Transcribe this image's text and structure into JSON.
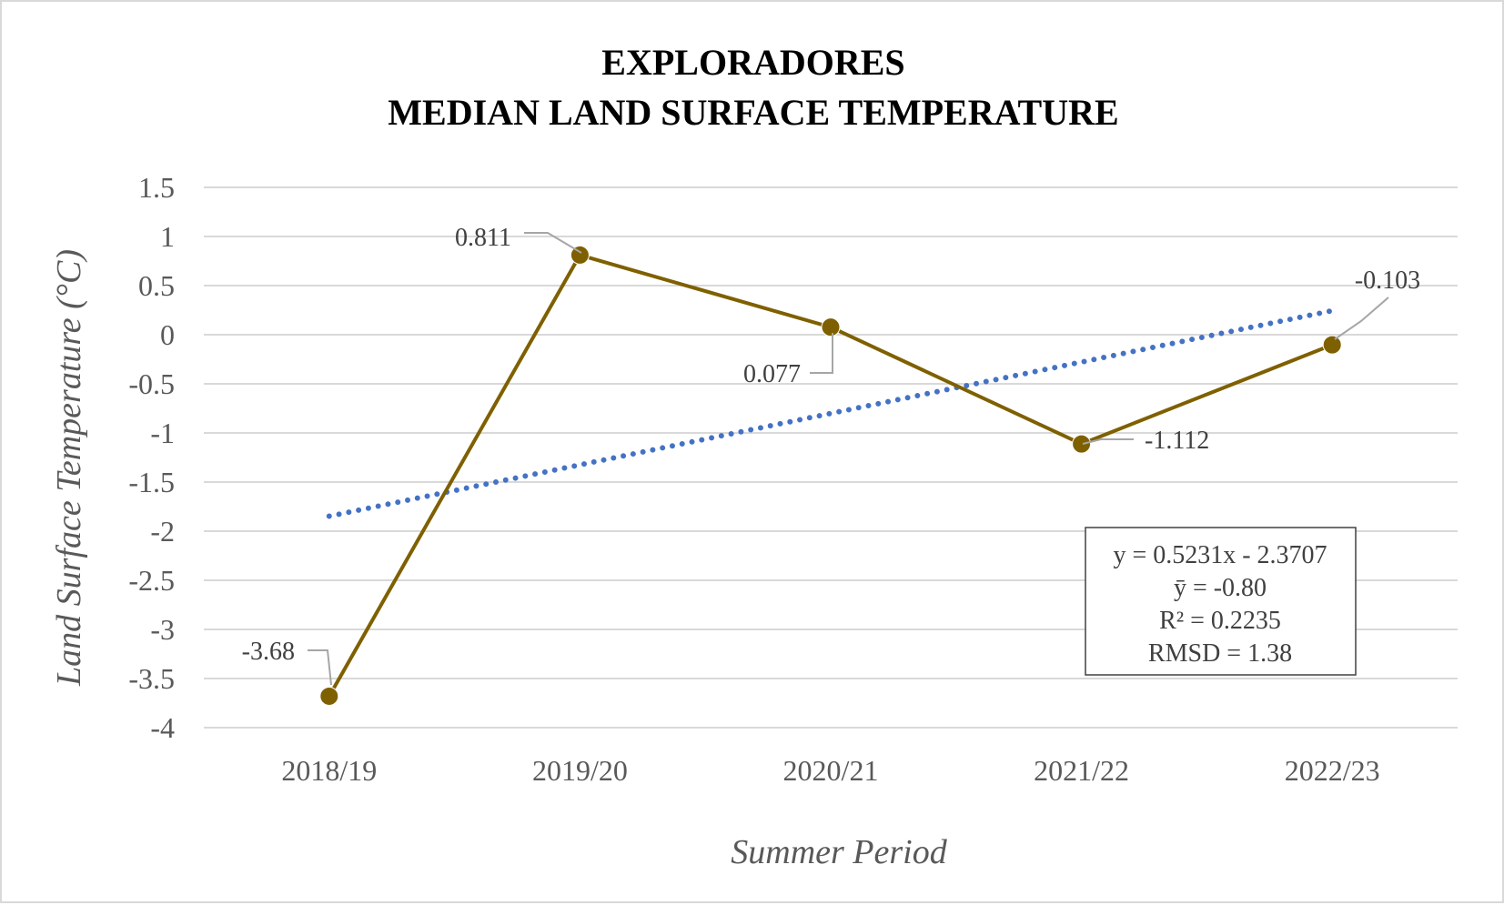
{
  "chart_data": {
    "type": "line",
    "title": [
      "EXPLORADORES",
      "MEDIAN LAND SURFACE TEMPERATURE"
    ],
    "xlabel": "Summer Period",
    "ylabel": "Land Surface Temperature (°C)",
    "categories": [
      "2018/19",
      "2019/20",
      "2020/21",
      "2021/22",
      "2022/23"
    ],
    "series": [
      {
        "values": [
          -3.68,
          0.811,
          0.077,
          -1.112,
          -0.103
        ],
        "labels": [
          "-3.68",
          "0.811",
          "0.077",
          "-1.112",
          "-0.103"
        ],
        "color": "#7f6000"
      }
    ],
    "trendline": {
      "type": "linear",
      "slope": 0.5231,
      "intercept": -2.3707,
      "color": "#4472c4",
      "style": "dotted"
    },
    "stats_box": [
      "y = 0.5231x - 2.3707",
      "ȳ = -0.80",
      "R² = 0.2235",
      "RMSD = 1.38"
    ],
    "ylim": [
      -4,
      1.5
    ],
    "yticks": [
      "1.5",
      "1",
      "0.5",
      "0",
      "-0.5",
      "-1",
      "-1.5",
      "-2",
      "-2.5",
      "-3",
      "-3.5",
      "-4"
    ],
    "grid": true,
    "legend": "none"
  }
}
